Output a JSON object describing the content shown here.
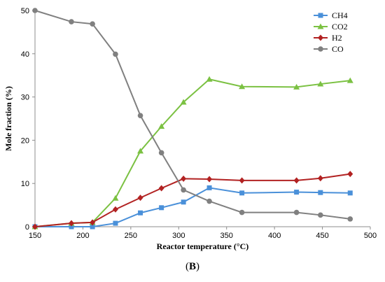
{
  "chart_data": {
    "type": "line",
    "xlabel": "Reactor temperature (°C)",
    "ylabel": "Mole fraction (%)",
    "xlim": [
      150,
      500
    ],
    "ylim": [
      0,
      50
    ],
    "xticks": [
      150,
      200,
      250,
      300,
      350,
      400,
      450,
      500
    ],
    "yticks": [
      0,
      10,
      20,
      30,
      40,
      50
    ],
    "grid": false,
    "legend_position": "top-right",
    "series": [
      {
        "name": "CH4",
        "color": "#4A90D9",
        "marker": "square",
        "x": [
          150,
          188,
          210,
          234,
          260,
          282,
          305,
          332,
          366,
          423,
          448,
          479
        ],
        "y": [
          0.0,
          0.0,
          0.0,
          0.8,
          3.2,
          4.4,
          5.7,
          9.0,
          7.8,
          8.0,
          7.9,
          7.8
        ]
      },
      {
        "name": "CO2",
        "color": "#7BC142",
        "marker": "triangle",
        "x": [
          150,
          188,
          210,
          234,
          260,
          282,
          305,
          332,
          366,
          423,
          448,
          479
        ],
        "y": [
          0.0,
          0.8,
          1.0,
          6.6,
          17.5,
          23.2,
          28.8,
          34.1,
          32.4,
          32.3,
          33.0,
          33.8
        ]
      },
      {
        "name": "H2",
        "color": "#B22222",
        "marker": "diamond",
        "x": [
          150,
          188,
          210,
          234,
          260,
          282,
          305,
          332,
          366,
          423,
          448,
          479
        ],
        "y": [
          0.0,
          0.8,
          1.0,
          4.0,
          6.7,
          8.9,
          11.1,
          11.0,
          10.7,
          10.7,
          11.2,
          12.2
        ]
      },
      {
        "name": "CO",
        "color": "#808080",
        "marker": "circle",
        "x": [
          150,
          188,
          210,
          234,
          260,
          282,
          305,
          332,
          366,
          423,
          448,
          479
        ],
        "y": [
          50.0,
          47.4,
          46.9,
          39.9,
          25.7,
          17.1,
          8.5,
          5.9,
          3.3,
          3.3,
          2.7,
          1.8
        ]
      }
    ]
  },
  "panel_label": {
    "open": "(",
    "letter": "B",
    "close": ")"
  }
}
